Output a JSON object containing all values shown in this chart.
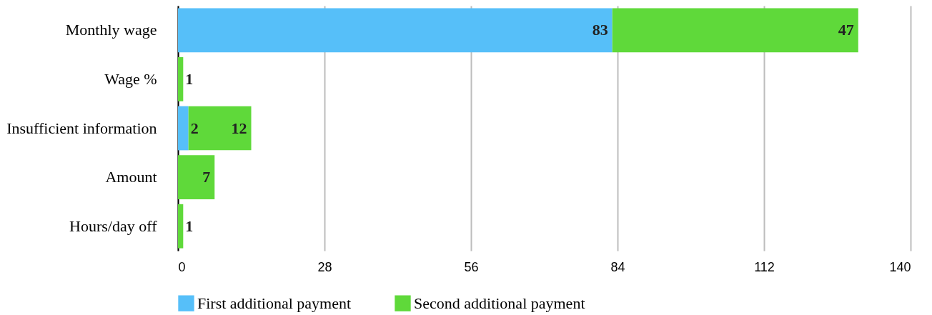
{
  "chart_data": {
    "type": "bar",
    "orientation": "horizontal",
    "stacked": true,
    "categories": [
      "Monthly wage",
      "Wage %",
      "Insufficient information",
      "Amount",
      "Hours/day off"
    ],
    "series": [
      {
        "name": "First additional payment",
        "color": "#56bff9",
        "values": [
          83,
          0,
          2,
          0,
          0
        ],
        "value_labels": [
          "83",
          null,
          "2",
          null,
          null
        ]
      },
      {
        "name": "Second additional payment",
        "color": "#5fd93a",
        "values": [
          47,
          1,
          12,
          7,
          1
        ],
        "value_labels": [
          "47",
          "1",
          "12",
          "7",
          "1"
        ]
      }
    ],
    "xlim": [
      0,
      140
    ],
    "xticks": [
      0,
      28,
      56,
      84,
      112,
      140
    ],
    "grid": "x",
    "legend": "bottom"
  }
}
